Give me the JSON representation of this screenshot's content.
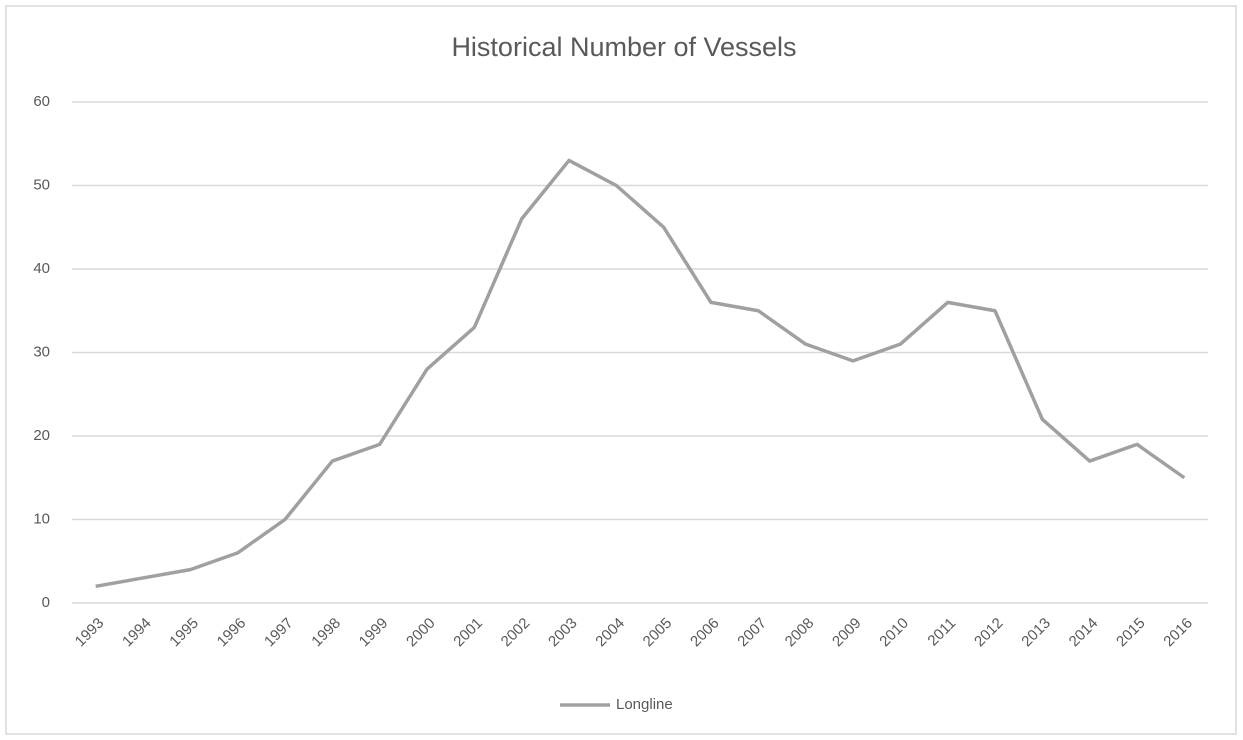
{
  "chart_data": {
    "type": "line",
    "title": "Historical Number of Vessels",
    "categories": [
      "1993",
      "1994",
      "1995",
      "1996",
      "1997",
      "1998",
      "1999",
      "2000",
      "2001",
      "2002",
      "2003",
      "2004",
      "2005",
      "2006",
      "2007",
      "2008",
      "2009",
      "2010",
      "2011",
      "2012",
      "2013",
      "2014",
      "2015",
      "2016"
    ],
    "series": [
      {
        "name": "Longline",
        "color": "#a0a0a0",
        "values": [
          2,
          3,
          4,
          6,
          10,
          17,
          19,
          28,
          33,
          46,
          53,
          50,
          45,
          36,
          35,
          31,
          29,
          31,
          36,
          35,
          22,
          17,
          19,
          15
        ]
      }
    ],
    "ylim": [
      0,
      60
    ],
    "yticks": [
      0,
      10,
      20,
      30,
      40,
      50,
      60
    ],
    "grid": true,
    "legend": "bottom"
  }
}
